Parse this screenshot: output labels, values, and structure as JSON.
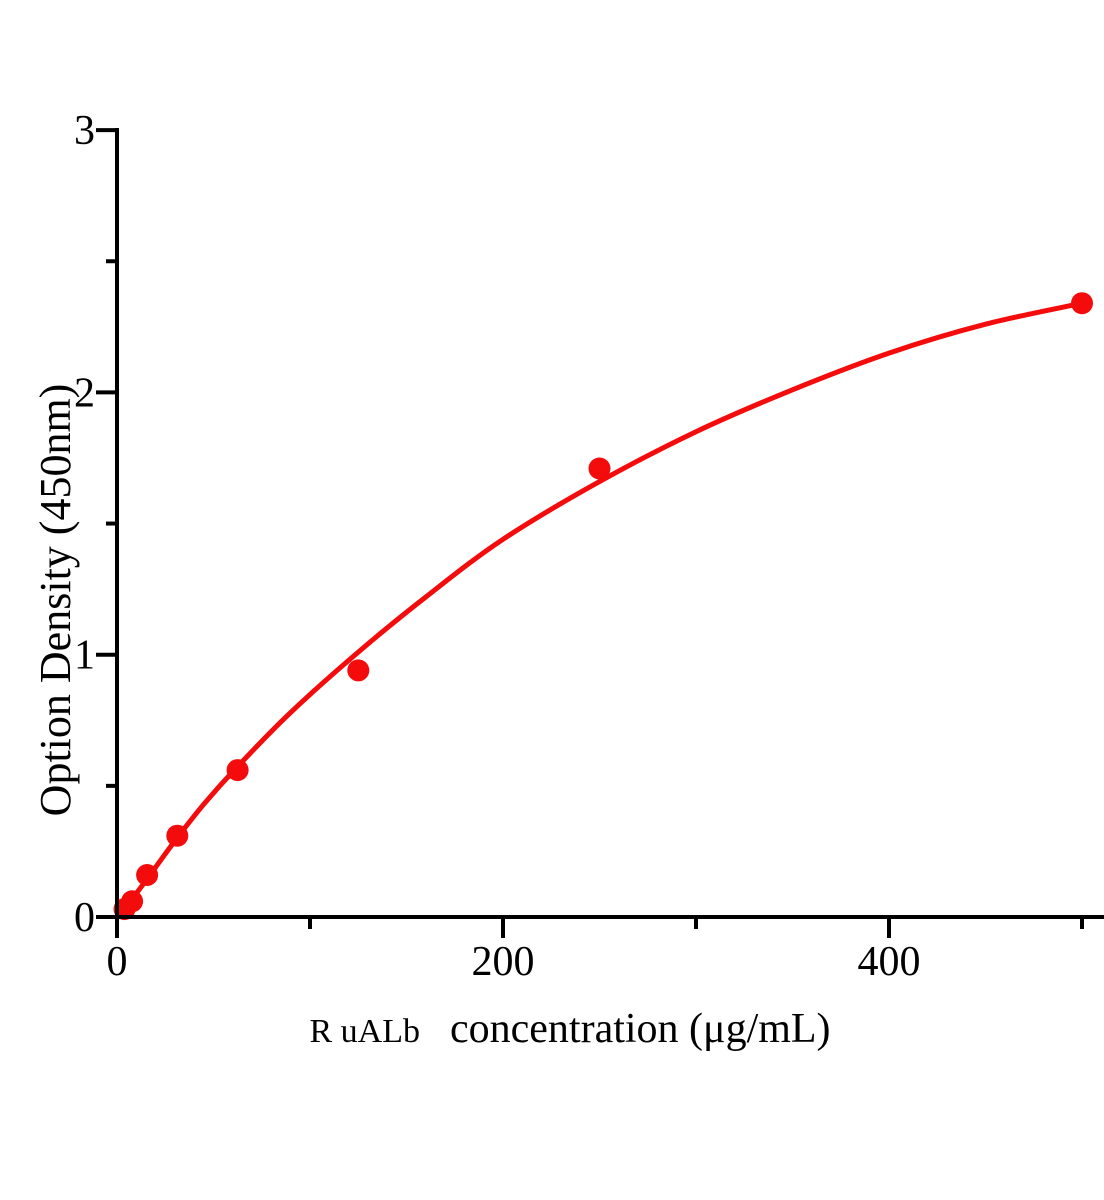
{
  "chart_data": {
    "type": "scatter",
    "title": "",
    "xlabel_prefix": "R uALb",
    "xlabel": "concentration (μg/mL)",
    "ylabel": "Option Density（450nm）",
    "xlim": [
      0,
      512
    ],
    "ylim": [
      0,
      3
    ],
    "x_major_ticks": [
      0,
      200,
      400
    ],
    "x_minor_ticks": [
      100,
      300,
      500
    ],
    "y_major_ticks": [
      0,
      1,
      2,
      3
    ],
    "y_minor_ticks": [
      0.5,
      1.5,
      2.5
    ],
    "grid": false,
    "legend": "none",
    "axis_color": "#000000",
    "accent_color": "#f40b0b",
    "series": [
      {
        "x": [
          3.9,
          7.8,
          15.6,
          31.25,
          62.5,
          125,
          250,
          500
        ],
        "y": [
          0.03,
          0.06,
          0.16,
          0.31,
          0.56,
          0.94,
          1.71,
          2.34
        ]
      }
    ],
    "fit_curve": [
      [
        0,
        0
      ],
      [
        10,
        0.09
      ],
      [
        20,
        0.19
      ],
      [
        31,
        0.3
      ],
      [
        45,
        0.43
      ],
      [
        62,
        0.57
      ],
      [
        90,
        0.78
      ],
      [
        125,
        1.01
      ],
      [
        160,
        1.22
      ],
      [
        200,
        1.44
      ],
      [
        250,
        1.66
      ],
      [
        300,
        1.85
      ],
      [
        350,
        2.01
      ],
      [
        400,
        2.15
      ],
      [
        450,
        2.26
      ],
      [
        500,
        2.34
      ]
    ]
  }
}
